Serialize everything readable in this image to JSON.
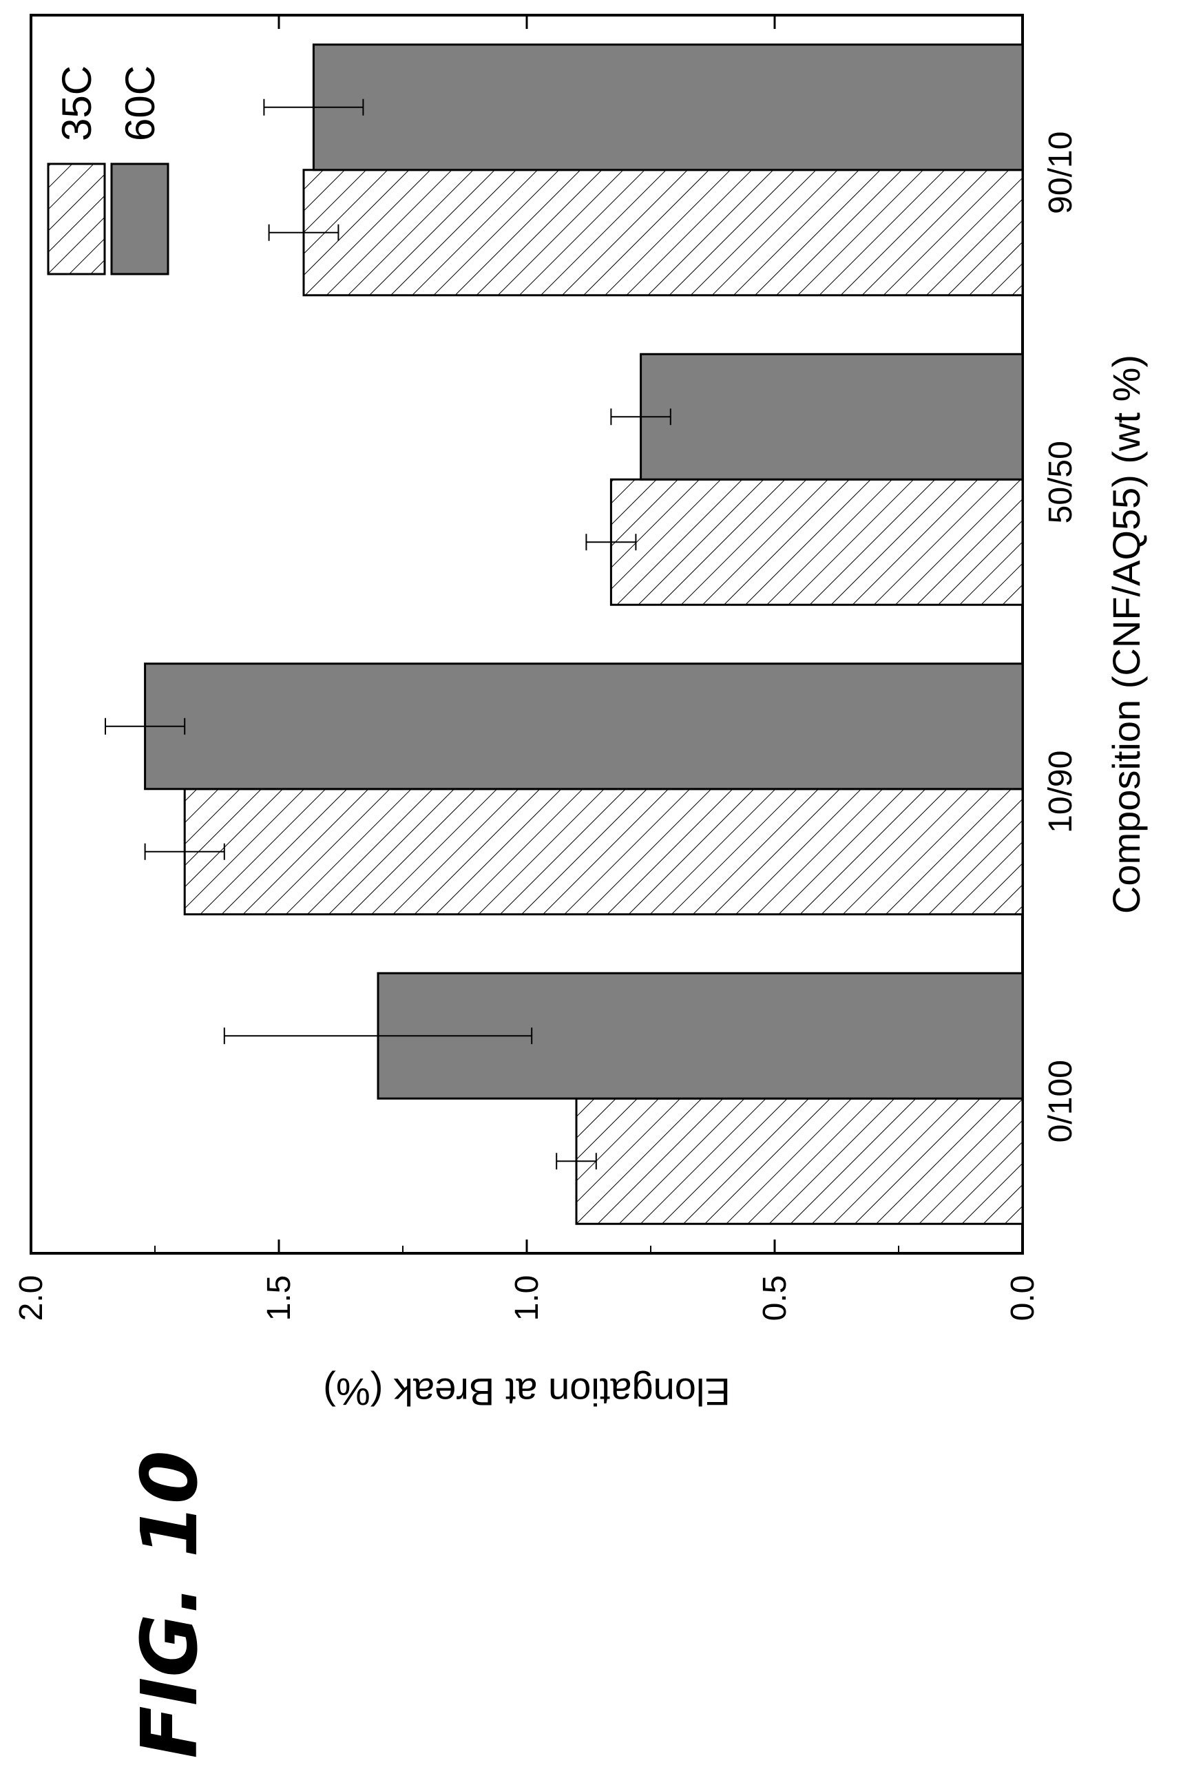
{
  "figure": {
    "label": "FIG. 10"
  },
  "chart_data": {
    "type": "bar",
    "orientation": "horizontal-rotated",
    "xlabel": "Composition (CNF/AQ55) (wt %)",
    "ylabel": "Elongation at Break (%)",
    "categories": [
      "0/100",
      "10/90",
      "50/50",
      "90/10"
    ],
    "ylim": [
      0.0,
      2.0
    ],
    "ticks": [
      "0.0",
      "0.5",
      "1.0",
      "1.5",
      "2.0"
    ],
    "tick_values": [
      0.0,
      0.5,
      1.0,
      1.5,
      2.0
    ],
    "grid": false,
    "legend_position": "top-right",
    "series": [
      {
        "name": "35C",
        "fill": "hatched",
        "color": "#ffffff",
        "values": [
          0.9,
          1.69,
          0.83,
          1.45
        ],
        "errors": [
          0.04,
          0.08,
          0.05,
          0.07
        ]
      },
      {
        "name": "60C",
        "fill": "solid",
        "color": "#808080",
        "values": [
          1.3,
          1.77,
          0.77,
          1.43
        ],
        "errors": [
          0.31,
          0.08,
          0.06,
          0.1
        ]
      }
    ]
  }
}
